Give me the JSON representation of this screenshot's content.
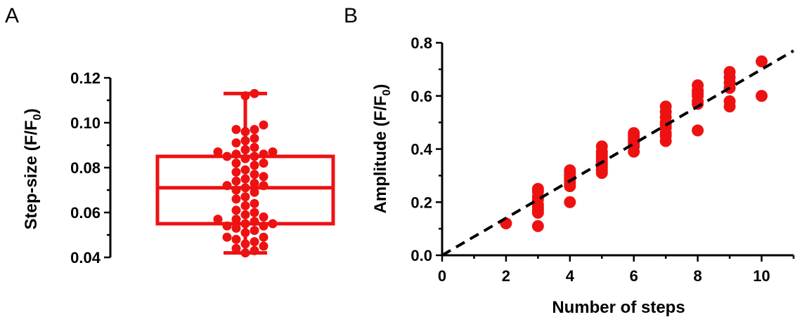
{
  "panels": {
    "a": {
      "letter": "A"
    },
    "b": {
      "letter": "B"
    }
  },
  "colors": {
    "marker": "#ee1111",
    "axis": "#000000",
    "fit_line": "#000000"
  },
  "chart_data": [
    {
      "type": "box",
      "panel": "A",
      "xlabel": "",
      "ylabel_parts": [
        "Step-size (F/F",
        "0",
        ")"
      ],
      "ylim": [
        0.04,
        0.12
      ],
      "yticks": [
        0.04,
        0.06,
        0.08,
        0.1,
        0.12
      ],
      "ytick_labels": [
        "0.04",
        "0.06",
        "0.08",
        "0.10",
        "0.12"
      ],
      "grid": false,
      "box": {
        "min": 0.042,
        "q1": 0.055,
        "median": 0.071,
        "q3": 0.085,
        "max": 0.113
      },
      "points": [
        0.113,
        0.112,
        0.099,
        0.097,
        0.097,
        0.096,
        0.093,
        0.092,
        0.091,
        0.089,
        0.088,
        0.087,
        0.087,
        0.086,
        0.086,
        0.085,
        0.085,
        0.084,
        0.082,
        0.082,
        0.081,
        0.079,
        0.078,
        0.077,
        0.076,
        0.075,
        0.074,
        0.073,
        0.072,
        0.072,
        0.071,
        0.07,
        0.069,
        0.067,
        0.066,
        0.064,
        0.063,
        0.061,
        0.06,
        0.059,
        0.058,
        0.057,
        0.057,
        0.056,
        0.055,
        0.055,
        0.054,
        0.054,
        0.053,
        0.052,
        0.051,
        0.049,
        0.049,
        0.048,
        0.047,
        0.046,
        0.045,
        0.044,
        0.043,
        0.042
      ]
    },
    {
      "type": "scatter",
      "panel": "B",
      "xlabel": "Number of steps",
      "ylabel_parts": [
        "Amplitude (F/F",
        "0",
        ")"
      ],
      "xlim": [
        0,
        11
      ],
      "ylim": [
        0,
        0.8
      ],
      "xticks": [
        0,
        2,
        4,
        6,
        8,
        10
      ],
      "xtick_labels": [
        "0",
        "2",
        "4",
        "6",
        "8",
        "10"
      ],
      "yticks": [
        0,
        0.2,
        0.4,
        0.6,
        0.8
      ],
      "ytick_labels": [
        "0.0",
        "0.2",
        "0.4",
        "0.6",
        "0.8"
      ],
      "grid": false,
      "points": [
        {
          "x": 2,
          "y": 0.12
        },
        {
          "x": 3,
          "y": 0.25
        },
        {
          "x": 3,
          "y": 0.24
        },
        {
          "x": 3,
          "y": 0.22
        },
        {
          "x": 3,
          "y": 0.21
        },
        {
          "x": 3,
          "y": 0.19
        },
        {
          "x": 3,
          "y": 0.18
        },
        {
          "x": 3,
          "y": 0.17
        },
        {
          "x": 3,
          "y": 0.16
        },
        {
          "x": 3,
          "y": 0.11
        },
        {
          "x": 4,
          "y": 0.32
        },
        {
          "x": 4,
          "y": 0.31
        },
        {
          "x": 4,
          "y": 0.3
        },
        {
          "x": 4,
          "y": 0.29
        },
        {
          "x": 4,
          "y": 0.28
        },
        {
          "x": 4,
          "y": 0.27
        },
        {
          "x": 4,
          "y": 0.26
        },
        {
          "x": 4,
          "y": 0.2
        },
        {
          "x": 5,
          "y": 0.41
        },
        {
          "x": 5,
          "y": 0.39
        },
        {
          "x": 5,
          "y": 0.38
        },
        {
          "x": 5,
          "y": 0.37
        },
        {
          "x": 5,
          "y": 0.36
        },
        {
          "x": 5,
          "y": 0.35
        },
        {
          "x": 5,
          "y": 0.34
        },
        {
          "x": 5,
          "y": 0.33
        },
        {
          "x": 5,
          "y": 0.32
        },
        {
          "x": 5,
          "y": 0.31
        },
        {
          "x": 6,
          "y": 0.46
        },
        {
          "x": 6,
          "y": 0.45
        },
        {
          "x": 6,
          "y": 0.44
        },
        {
          "x": 6,
          "y": 0.43
        },
        {
          "x": 6,
          "y": 0.42
        },
        {
          "x": 6,
          "y": 0.41
        },
        {
          "x": 6,
          "y": 0.39
        },
        {
          "x": 7,
          "y": 0.56
        },
        {
          "x": 7,
          "y": 0.54
        },
        {
          "x": 7,
          "y": 0.52
        },
        {
          "x": 7,
          "y": 0.5
        },
        {
          "x": 7,
          "y": 0.49
        },
        {
          "x": 7,
          "y": 0.48
        },
        {
          "x": 7,
          "y": 0.46
        },
        {
          "x": 7,
          "y": 0.45
        },
        {
          "x": 7,
          "y": 0.43
        },
        {
          "x": 8,
          "y": 0.64
        },
        {
          "x": 8,
          "y": 0.62
        },
        {
          "x": 8,
          "y": 0.61
        },
        {
          "x": 8,
          "y": 0.6
        },
        {
          "x": 8,
          "y": 0.58
        },
        {
          "x": 8,
          "y": 0.57
        },
        {
          "x": 8,
          "y": 0.47
        },
        {
          "x": 9,
          "y": 0.69
        },
        {
          "x": 9,
          "y": 0.67
        },
        {
          "x": 9,
          "y": 0.65
        },
        {
          "x": 9,
          "y": 0.63
        },
        {
          "x": 9,
          "y": 0.58
        },
        {
          "x": 9,
          "y": 0.56
        },
        {
          "x": 10,
          "y": 0.73
        },
        {
          "x": 10,
          "y": 0.6
        }
      ],
      "fit_line": {
        "style": "dashed",
        "x": [
          0,
          11
        ],
        "y": [
          0,
          0.77
        ]
      }
    }
  ]
}
